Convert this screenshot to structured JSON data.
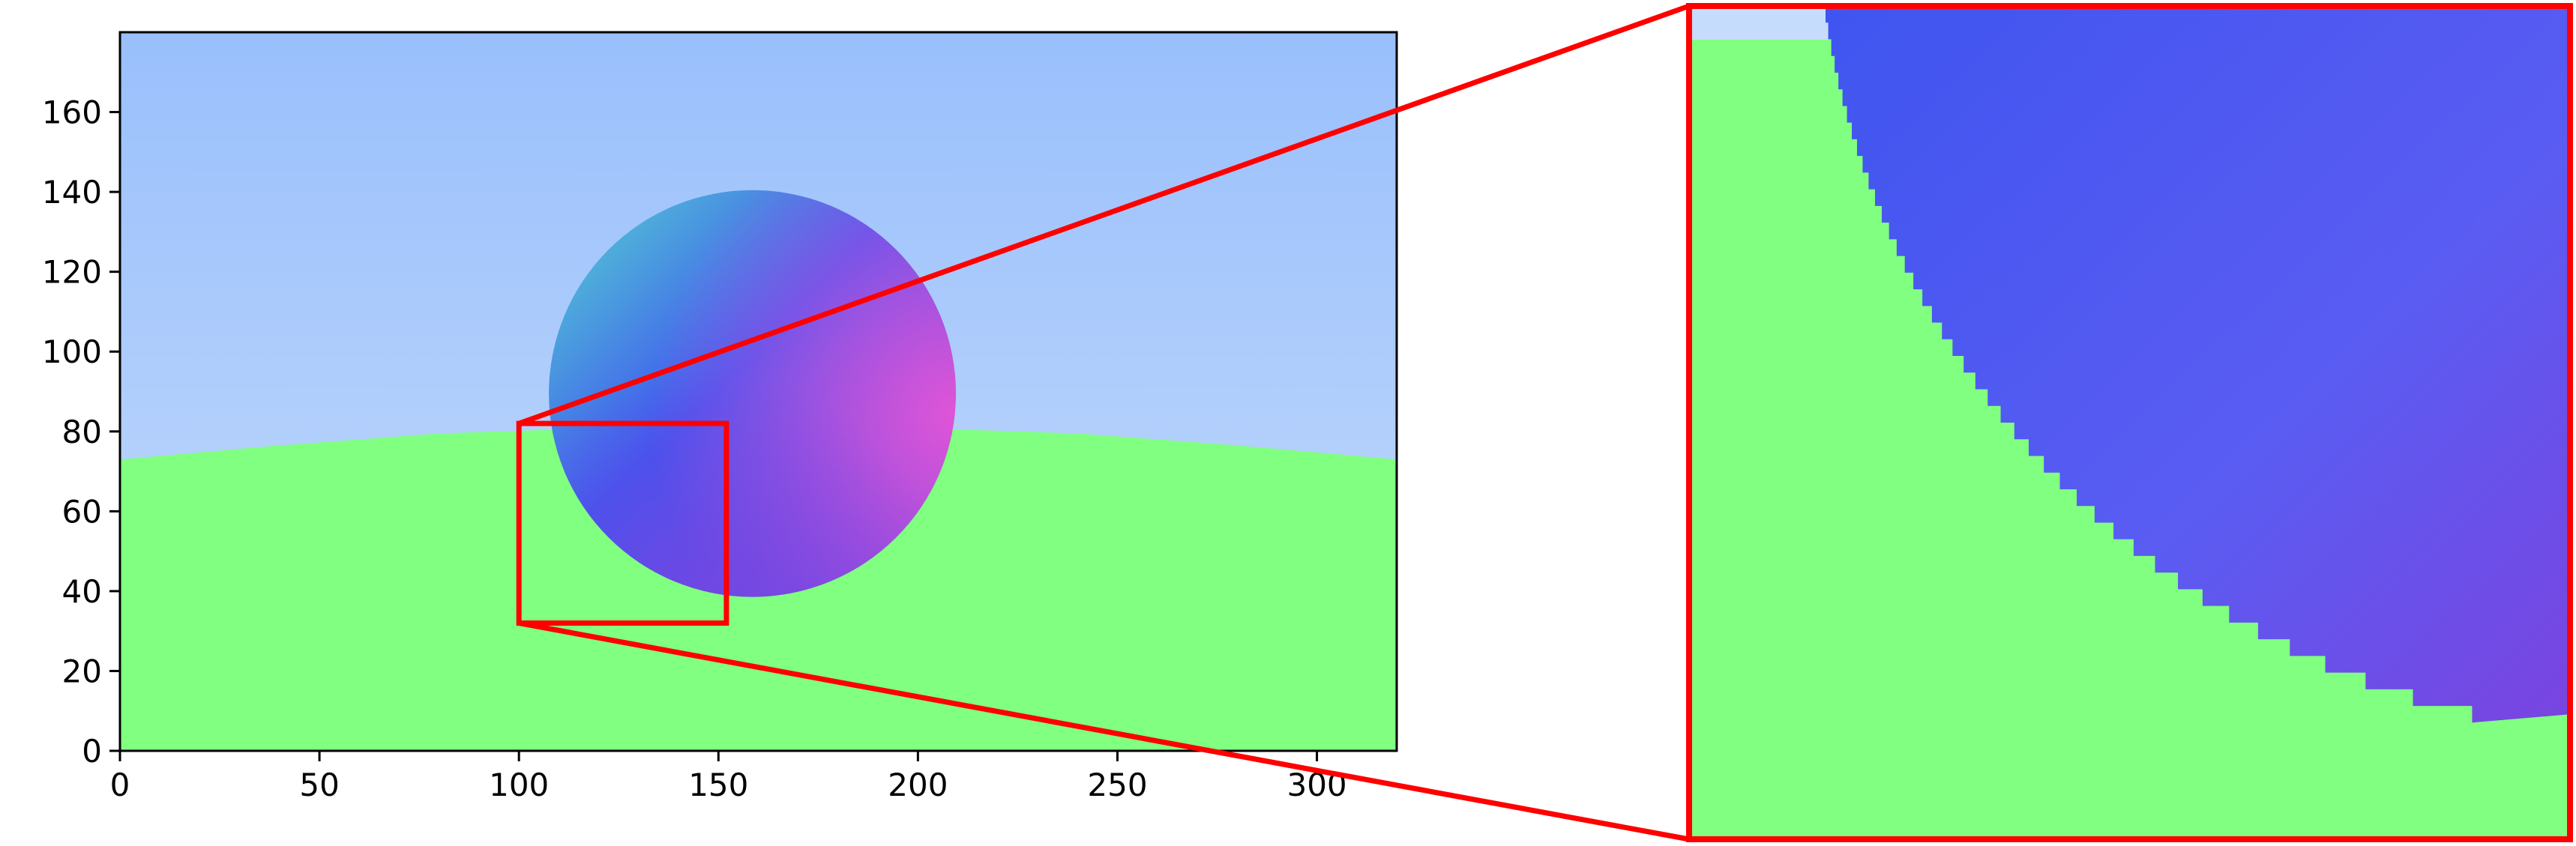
{
  "figure": {
    "main_plot": {
      "x_range": [
        0,
        320
      ],
      "y_range": [
        0,
        180
      ],
      "x_ticks": [
        0,
        50,
        100,
        150,
        200,
        250,
        300
      ],
      "y_ticks": [
        0,
        20,
        40,
        60,
        80,
        100,
        120,
        140,
        160
      ],
      "x_tick_labels": [
        "0",
        "50",
        "100",
        "150",
        "200",
        "250",
        "300"
      ],
      "y_tick_labels": [
        "0",
        "20",
        "40",
        "60",
        "80",
        "100",
        "120",
        "140",
        "160"
      ]
    },
    "zoom_region": {
      "x_range": [
        100,
        152
      ],
      "y_range": [
        32,
        82
      ],
      "color": "#ff0000"
    },
    "colors": {
      "sky_top": "#99bffc",
      "sky_bottom": "#c6dcfd",
      "ground": "#80ff80",
      "sphere_cyan": "#55d8d0",
      "sphere_blue": "#3f55f0",
      "sphere_magenta": "#e655d6",
      "sphere_purple": "#7a44e0",
      "frame": "#000000",
      "highlight": "#ff0000"
    }
  }
}
